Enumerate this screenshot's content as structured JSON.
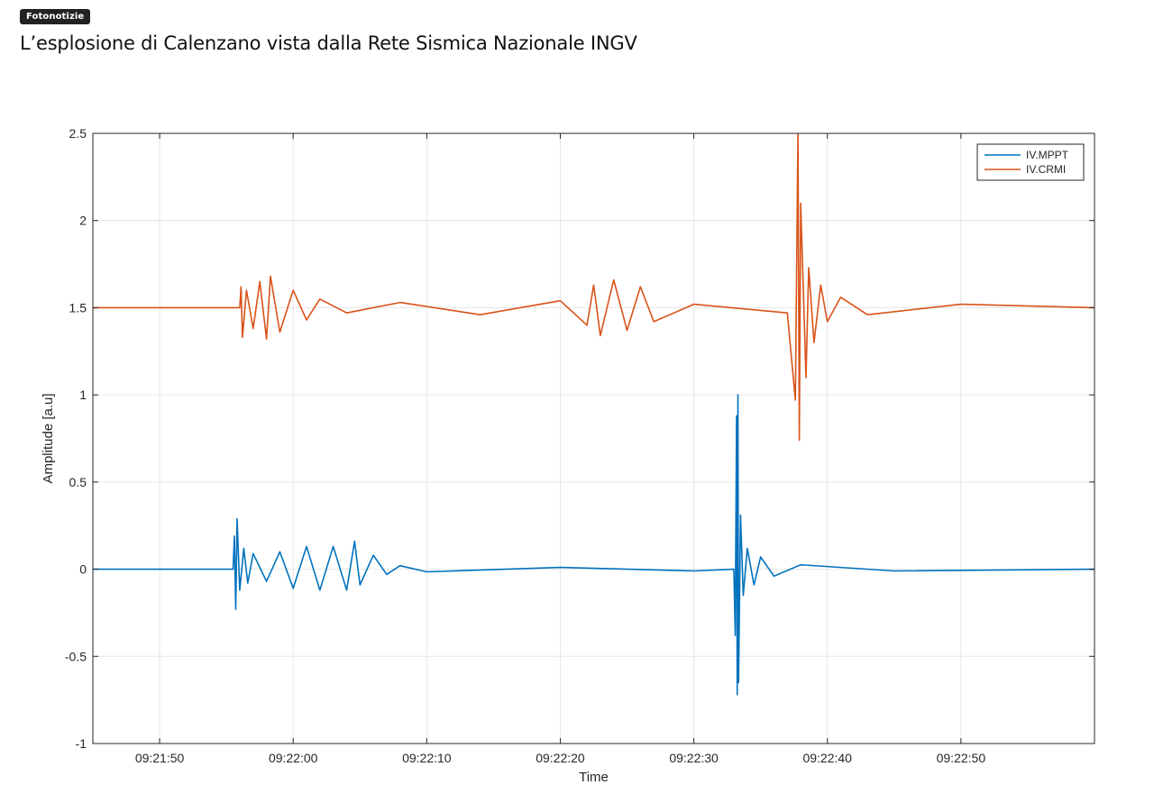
{
  "header": {
    "category": "Fotonotizie",
    "title": "L’esplosione di Calenzano vista dalla Rete Sismica Nazionale INGV"
  },
  "colors": {
    "mppt": "#0072BD",
    "crmi": "#D95319",
    "grid": "#e6e6e6",
    "axis": "#262626"
  },
  "chart_data": {
    "type": "line",
    "title": "",
    "xlabel": "Time",
    "ylabel": "Amplitude [a.u]",
    "ylim": [
      -1,
      2.5
    ],
    "xlim": [
      "09:21:45",
      "09:23:00"
    ],
    "grid": true,
    "legend_position": "top-right",
    "x_tick_labels": [
      "09:21:50",
      "09:22:00",
      "09:22:10",
      "09:22:20",
      "09:22:30",
      "09:22:40",
      "09:22:50"
    ],
    "y_tick_labels": [
      "-1",
      "-0.5",
      "0",
      "0.5",
      "1",
      "1.5",
      "2",
      "2.5"
    ],
    "series": [
      {
        "name": "IV.MPPT",
        "baseline": 0,
        "points": [
          [
            "09:21:45",
            0
          ],
          [
            "09:21:55.5",
            0
          ],
          [
            "09:21:55.6",
            0.19
          ],
          [
            "09:21:55.7",
            -0.23
          ],
          [
            "09:21:55.8",
            0.29
          ],
          [
            "09:21:56.0",
            -0.12
          ],
          [
            "09:21:56.3",
            0.12
          ],
          [
            "09:21:56.6",
            -0.08
          ],
          [
            "09:21:57",
            0.09
          ],
          [
            "09:21:58",
            -0.07
          ],
          [
            "09:21:59",
            0.1
          ],
          [
            "09:22:00",
            -0.11
          ],
          [
            "09:22:01",
            0.13
          ],
          [
            "09:22:02",
            -0.12
          ],
          [
            "09:22:03",
            0.13
          ],
          [
            "09:22:04",
            -0.12
          ],
          [
            "09:22:04.6",
            0.16
          ],
          [
            "09:22:05",
            -0.09
          ],
          [
            "09:22:06",
            0.08
          ],
          [
            "09:22:07",
            -0.03
          ],
          [
            "09:22:08",
            0.02
          ],
          [
            "09:22:10",
            -0.015
          ],
          [
            "09:22:20",
            0.01
          ],
          [
            "09:22:30",
            -0.01
          ],
          [
            "09:22:33",
            0
          ],
          [
            "09:22:33.1",
            -0.38
          ],
          [
            "09:22:33.2",
            0.88
          ],
          [
            "09:22:33.25",
            -0.72
          ],
          [
            "09:22:33.3",
            1.0
          ],
          [
            "09:22:33.35",
            -0.65
          ],
          [
            "09:22:33.5",
            0.31
          ],
          [
            "09:22:33.7",
            -0.15
          ],
          [
            "09:22:34",
            0.12
          ],
          [
            "09:22:34.5",
            -0.09
          ],
          [
            "09:22:35",
            0.07
          ],
          [
            "09:22:36",
            -0.04
          ],
          [
            "09:22:38",
            0.025
          ],
          [
            "09:22:45",
            -0.01
          ],
          [
            "09:23:00",
            0
          ]
        ]
      },
      {
        "name": "IV.CRMI",
        "baseline": 1.5,
        "points": [
          [
            "09:21:45",
            1.5
          ],
          [
            "09:21:56",
            1.5
          ],
          [
            "09:21:56.1",
            1.62
          ],
          [
            "09:21:56.2",
            1.33
          ],
          [
            "09:21:56.5",
            1.6
          ],
          [
            "09:21:57",
            1.38
          ],
          [
            "09:21:57.5",
            1.65
          ],
          [
            "09:21:58",
            1.32
          ],
          [
            "09:21:58.3",
            1.68
          ],
          [
            "09:21:59",
            1.36
          ],
          [
            "09:22:00",
            1.6
          ],
          [
            "09:22:01",
            1.43
          ],
          [
            "09:22:02",
            1.55
          ],
          [
            "09:22:04",
            1.47
          ],
          [
            "09:22:08",
            1.53
          ],
          [
            "09:22:14",
            1.46
          ],
          [
            "09:22:20",
            1.54
          ],
          [
            "09:22:22",
            1.4
          ],
          [
            "09:22:22.5",
            1.63
          ],
          [
            "09:22:23",
            1.34
          ],
          [
            "09:22:24",
            1.66
          ],
          [
            "09:22:25",
            1.37
          ],
          [
            "09:22:26",
            1.62
          ],
          [
            "09:22:27",
            1.42
          ],
          [
            "09:22:30",
            1.52
          ],
          [
            "09:22:37",
            1.47
          ],
          [
            "09:22:37.6",
            0.97
          ],
          [
            "09:22:37.8",
            2.5
          ],
          [
            "09:22:37.9",
            0.74
          ],
          [
            "09:22:38",
            2.1
          ],
          [
            "09:22:38.4",
            1.1
          ],
          [
            "09:22:38.6",
            1.73
          ],
          [
            "09:22:39",
            1.3
          ],
          [
            "09:22:39.5",
            1.63
          ],
          [
            "09:22:40",
            1.42
          ],
          [
            "09:22:41",
            1.56
          ],
          [
            "09:22:43",
            1.46
          ],
          [
            "09:22:50",
            1.52
          ],
          [
            "09:23:00",
            1.5
          ]
        ]
      }
    ]
  }
}
